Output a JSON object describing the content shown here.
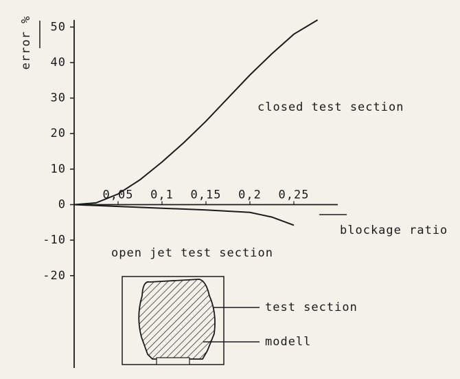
{
  "chart_data": {
    "type": "line",
    "y_label": "error %",
    "x_label": "blockage ratio",
    "xlim": [
      0,
      0.3
    ],
    "ylim": [
      -46,
      52
    ],
    "xticks": [
      {
        "value": 0.05,
        "label": "0,05"
      },
      {
        "value": 0.1,
        "label": "0,1"
      },
      {
        "value": 0.15,
        "label": "0,15"
      },
      {
        "value": 0.2,
        "label": "0,2"
      },
      {
        "value": 0.25,
        "label": "0,25"
      }
    ],
    "yticks": [
      -20,
      -10,
      0,
      10,
      20,
      30,
      40,
      50
    ],
    "series": [
      {
        "name": "closed test section",
        "color": "#1a1a1a",
        "x": [
          0,
          0.025,
          0.05,
          0.075,
          0.1,
          0.125,
          0.15,
          0.175,
          0.2,
          0.225,
          0.25,
          0.277
        ],
        "values": [
          0,
          0.5,
          3,
          7,
          12,
          17.5,
          23.5,
          30,
          36.5,
          42.5,
          48,
          52
        ]
      },
      {
        "name": "open jet test section",
        "color": "#1a1a1a",
        "x": [
          0,
          0.05,
          0.1,
          0.15,
          0.2,
          0.225,
          0.25
        ],
        "values": [
          0,
          -0.5,
          -1,
          -1.5,
          -2.2,
          -3.5,
          -5.8
        ]
      }
    ]
  },
  "inset": {
    "test_section_label": "test section",
    "model_label": "modell"
  }
}
